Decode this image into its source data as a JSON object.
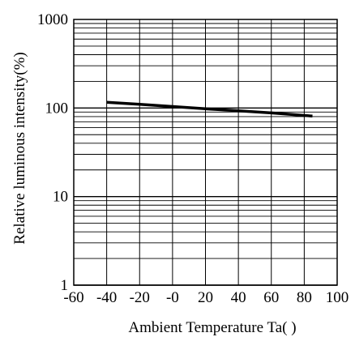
{
  "chart_data": {
    "type": "line",
    "xlabel": "Ambient Temperature Ta(   )",
    "ylabel": "Relative luminous intensity(%)",
    "x_ticks": [
      "-60",
      "-40",
      "-20",
      "-0",
      "20",
      "40",
      "60",
      "80",
      "100"
    ],
    "y_ticks": [
      "1",
      "10",
      "100",
      "1000"
    ],
    "xlim": [
      -60,
      100
    ],
    "ylim": [
      1,
      1000
    ],
    "yscale": "log",
    "grid": true,
    "series": [
      {
        "x": [
          -40,
          -20,
          0,
          20,
          40,
          60,
          85
        ],
        "y": [
          116,
          110,
          104,
          98,
          93,
          88,
          81
        ]
      }
    ]
  },
  "colors": {
    "line": "#000000",
    "grid": "#000000",
    "background": "#ffffff"
  }
}
